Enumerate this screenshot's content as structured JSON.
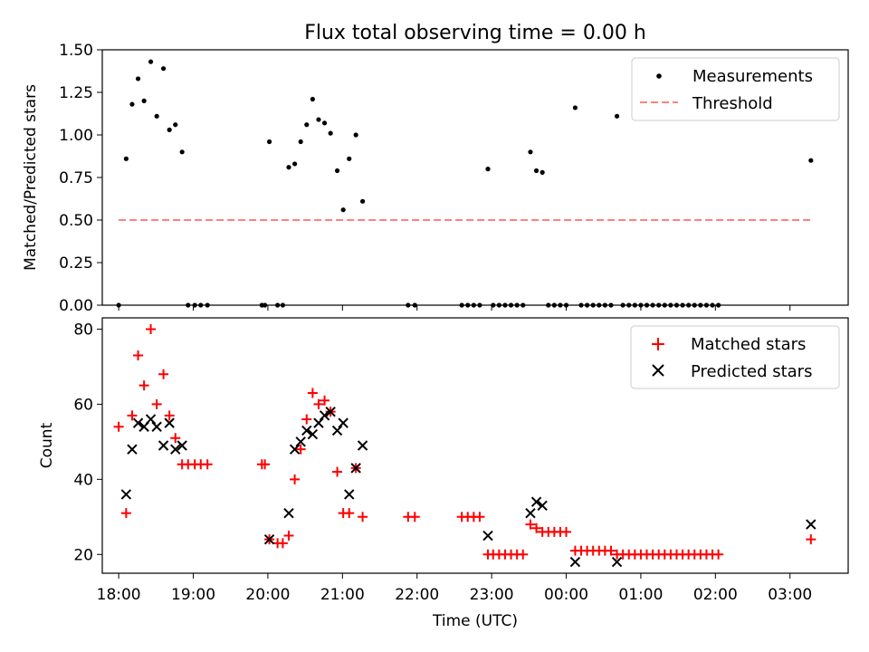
{
  "title": "Flux total observing time = 0.00 h",
  "chart_data": [
    {
      "type": "scatter",
      "ylabel": "Matched/Predicted stars",
      "ylim": [
        0,
        1.5
      ],
      "yticks": [
        "0.00",
        "0.25",
        "0.50",
        "0.75",
        "1.00",
        "1.25",
        "1.50"
      ],
      "xlim_hours": [
        17.78,
        27.78
      ],
      "legend": {
        "placement": "top-right",
        "entries": [
          "Measurements",
          "Threshold"
        ]
      },
      "threshold": {
        "value": 0.5,
        "x_start": 18.0,
        "x_end": 27.28,
        "color": "#ff8080"
      },
      "series": [
        {
          "name": "Measurements",
          "color": "#000000",
          "points": [
            [
              18.0,
              0.0
            ],
            [
              18.1,
              0.86
            ],
            [
              18.18,
              1.18
            ],
            [
              18.26,
              1.33
            ],
            [
              18.34,
              1.2
            ],
            [
              18.43,
              1.43
            ],
            [
              18.51,
              1.11
            ],
            [
              18.6,
              1.39
            ],
            [
              18.68,
              1.03
            ],
            [
              18.76,
              1.06
            ],
            [
              18.85,
              0.9
            ],
            [
              18.93,
              0.0
            ],
            [
              19.02,
              0.0
            ],
            [
              19.1,
              0.0
            ],
            [
              19.19,
              0.0
            ],
            [
              19.92,
              0.0
            ],
            [
              19.96,
              0.0
            ],
            [
              20.02,
              0.96
            ],
            [
              20.13,
              0.0
            ],
            [
              20.2,
              0.0
            ],
            [
              20.28,
              0.81
            ],
            [
              20.36,
              0.83
            ],
            [
              20.44,
              0.96
            ],
            [
              20.52,
              1.06
            ],
            [
              20.6,
              1.21
            ],
            [
              20.68,
              1.09
            ],
            [
              20.76,
              1.07
            ],
            [
              20.84,
              1.01
            ],
            [
              20.93,
              0.79
            ],
            [
              21.01,
              0.56
            ],
            [
              21.09,
              0.86
            ],
            [
              21.18,
              1.0
            ],
            [
              21.27,
              0.61
            ],
            [
              21.88,
              0.0
            ],
            [
              21.97,
              0.0
            ],
            [
              22.6,
              0.0
            ],
            [
              22.68,
              0.0
            ],
            [
              22.76,
              0.0
            ],
            [
              22.84,
              0.0
            ],
            [
              22.95,
              0.8
            ],
            [
              23.02,
              0.0
            ],
            [
              23.1,
              0.0
            ],
            [
              23.18,
              0.0
            ],
            [
              23.26,
              0.0
            ],
            [
              23.34,
              0.0
            ],
            [
              23.42,
              0.0
            ],
            [
              23.52,
              0.9
            ],
            [
              23.6,
              0.79
            ],
            [
              23.68,
              0.78
            ],
            [
              23.76,
              0.0
            ],
            [
              23.84,
              0.0
            ],
            [
              23.92,
              0.0
            ],
            [
              24.0,
              0.0
            ],
            [
              24.12,
              1.16
            ],
            [
              24.2,
              0.0
            ],
            [
              24.28,
              0.0
            ],
            [
              24.36,
              0.0
            ],
            [
              24.44,
              0.0
            ],
            [
              24.52,
              0.0
            ],
            [
              24.6,
              0.0
            ],
            [
              24.68,
              1.11
            ],
            [
              24.76,
              0.0
            ],
            [
              24.84,
              0.0
            ],
            [
              24.92,
              0.0
            ],
            [
              25.0,
              0.0
            ],
            [
              25.08,
              0.0
            ],
            [
              25.16,
              0.0
            ],
            [
              25.24,
              0.0
            ],
            [
              25.32,
              0.0
            ],
            [
              25.4,
              0.0
            ],
            [
              25.48,
              0.0
            ],
            [
              25.56,
              0.0
            ],
            [
              25.64,
              0.0
            ],
            [
              25.72,
              0.0
            ],
            [
              25.8,
              0.0
            ],
            [
              25.88,
              0.0
            ],
            [
              25.96,
              0.0
            ],
            [
              26.04,
              0.0
            ],
            [
              27.28,
              0.85
            ]
          ]
        }
      ]
    },
    {
      "type": "scatter",
      "xlabel": "Time (UTC)",
      "ylabel": "Count",
      "ylim": [
        15,
        83
      ],
      "yticks": [
        "20",
        "40",
        "60",
        "80"
      ],
      "xlim_hours": [
        17.78,
        27.78
      ],
      "xticks": [
        {
          "h": 18,
          "label": "18:00"
        },
        {
          "h": 19,
          "label": "19:00"
        },
        {
          "h": 20,
          "label": "20:00"
        },
        {
          "h": 21,
          "label": "21:00"
        },
        {
          "h": 22,
          "label": "22:00"
        },
        {
          "h": 23,
          "label": "23:00"
        },
        {
          "h": 24,
          "label": "00:00"
        },
        {
          "h": 25,
          "label": "01:00"
        },
        {
          "h": 26,
          "label": "02:00"
        },
        {
          "h": 27,
          "label": "03:00"
        }
      ],
      "legend": {
        "placement": "top-right",
        "entries": [
          "Matched stars",
          "Predicted stars"
        ]
      },
      "series": [
        {
          "name": "Matched stars",
          "marker": "plus",
          "color": "#ff0000",
          "points": [
            [
              18.0,
              54
            ],
            [
              18.1,
              31
            ],
            [
              18.18,
              57
            ],
            [
              18.26,
              73
            ],
            [
              18.34,
              65
            ],
            [
              18.43,
              80
            ],
            [
              18.51,
              60
            ],
            [
              18.6,
              68
            ],
            [
              18.68,
              57
            ],
            [
              18.76,
              51
            ],
            [
              18.85,
              44
            ],
            [
              18.93,
              44
            ],
            [
              19.02,
              44
            ],
            [
              19.1,
              44
            ],
            [
              19.19,
              44
            ],
            [
              19.92,
              44
            ],
            [
              19.96,
              44
            ],
            [
              20.02,
              24
            ],
            [
              20.13,
              23
            ],
            [
              20.2,
              23
            ],
            [
              20.28,
              25
            ],
            [
              20.36,
              40
            ],
            [
              20.44,
              48
            ],
            [
              20.52,
              56
            ],
            [
              20.6,
              63
            ],
            [
              20.68,
              60
            ],
            [
              20.76,
              61
            ],
            [
              20.84,
              58
            ],
            [
              20.93,
              42
            ],
            [
              21.01,
              31
            ],
            [
              21.09,
              31
            ],
            [
              21.18,
              43
            ],
            [
              21.27,
              30
            ],
            [
              21.88,
              30
            ],
            [
              21.97,
              30
            ],
            [
              22.6,
              30
            ],
            [
              22.68,
              30
            ],
            [
              22.76,
              30
            ],
            [
              22.84,
              30
            ],
            [
              22.95,
              20
            ],
            [
              23.02,
              20
            ],
            [
              23.1,
              20
            ],
            [
              23.18,
              20
            ],
            [
              23.26,
              20
            ],
            [
              23.34,
              20
            ],
            [
              23.42,
              20
            ],
            [
              23.52,
              28
            ],
            [
              23.6,
              27
            ],
            [
              23.68,
              26
            ],
            [
              23.76,
              26
            ],
            [
              23.84,
              26
            ],
            [
              23.92,
              26
            ],
            [
              24.0,
              26
            ],
            [
              24.12,
              21
            ],
            [
              24.2,
              21
            ],
            [
              24.28,
              21
            ],
            [
              24.36,
              21
            ],
            [
              24.44,
              21
            ],
            [
              24.52,
              21
            ],
            [
              24.6,
              21
            ],
            [
              24.68,
              20
            ],
            [
              24.76,
              20
            ],
            [
              24.84,
              20
            ],
            [
              24.92,
              20
            ],
            [
              25.0,
              20
            ],
            [
              25.08,
              20
            ],
            [
              25.16,
              20
            ],
            [
              25.24,
              20
            ],
            [
              25.32,
              20
            ],
            [
              25.4,
              20
            ],
            [
              25.48,
              20
            ],
            [
              25.56,
              20
            ],
            [
              25.64,
              20
            ],
            [
              25.72,
              20
            ],
            [
              25.8,
              20
            ],
            [
              25.88,
              20
            ],
            [
              25.96,
              20
            ],
            [
              26.04,
              20
            ],
            [
              27.28,
              24
            ]
          ]
        },
        {
          "name": "Predicted stars",
          "marker": "x",
          "color": "#000000",
          "points": [
            [
              18.1,
              36
            ],
            [
              18.18,
              48
            ],
            [
              18.26,
              55
            ],
            [
              18.34,
              54
            ],
            [
              18.43,
              56
            ],
            [
              18.51,
              54
            ],
            [
              18.6,
              49
            ],
            [
              18.68,
              55
            ],
            [
              18.76,
              48
            ],
            [
              18.85,
              49
            ],
            [
              20.02,
              24
            ],
            [
              20.28,
              31
            ],
            [
              20.36,
              48
            ],
            [
              20.44,
              50
            ],
            [
              20.52,
              53
            ],
            [
              20.6,
              52
            ],
            [
              20.68,
              55
            ],
            [
              20.76,
              57
            ],
            [
              20.84,
              58
            ],
            [
              20.93,
              53
            ],
            [
              21.01,
              55
            ],
            [
              21.09,
              36
            ],
            [
              21.18,
              43
            ],
            [
              21.27,
              49
            ],
            [
              22.95,
              25
            ],
            [
              23.52,
              31
            ],
            [
              23.6,
              34
            ],
            [
              23.68,
              33
            ],
            [
              24.12,
              18
            ],
            [
              24.68,
              18
            ],
            [
              27.28,
              28
            ]
          ]
        }
      ]
    }
  ]
}
